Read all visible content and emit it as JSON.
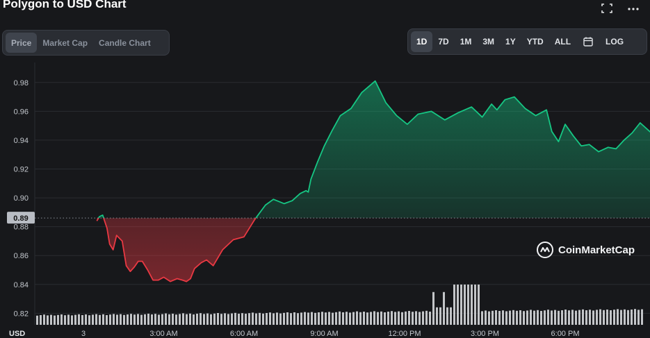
{
  "header": {
    "title": "Polygon to USD Chart"
  },
  "tabs": {
    "items": [
      "Price",
      "Market Cap",
      "Candle Chart"
    ],
    "active": "Price"
  },
  "ranges": {
    "items": [
      "1D",
      "7D",
      "1M",
      "3M",
      "1Y",
      "YTD",
      "ALL"
    ],
    "active": "1D",
    "log_label": "LOG"
  },
  "watermark": {
    "text": "CoinMarketCap"
  },
  "colors": {
    "up": "#16c784",
    "down": "#ea3943",
    "grid": "#2a2c31",
    "background": "#17181b"
  },
  "chart_data": {
    "type": "line",
    "title": "Polygon to USD Chart",
    "xlabel": "",
    "ylabel": "USD",
    "ylim": [
      0.812,
      0.99
    ],
    "yticks": [
      0.82,
      0.84,
      0.86,
      0.88,
      0.9,
      0.92,
      0.94,
      0.96,
      0.98
    ],
    "xlim": [
      0.5,
      24.2
    ],
    "x_ticks": [
      {
        "x": 0,
        "label": "3"
      },
      {
        "x": 3,
        "label": "3:00 AM"
      },
      {
        "x": 6,
        "label": "6:00 AM"
      },
      {
        "x": 9,
        "label": "9:00 AM"
      },
      {
        "x": 12,
        "label": "12:00 PM"
      },
      {
        "x": 15,
        "label": "3:00 PM"
      },
      {
        "x": 18,
        "label": "6:00 PM"
      }
    ],
    "x_unit": "hours since 12:00 AM",
    "reference_price": 0.886,
    "reference_label": "0.89",
    "series": [
      {
        "x": [
          0.5,
          0.6,
          0.72,
          0.88,
          0.98,
          1.11,
          1.24,
          1.45,
          1.6,
          1.75,
          1.9,
          2.05,
          2.2,
          2.4,
          2.6,
          2.8,
          3.0,
          3.25,
          3.5,
          3.7,
          3.85,
          4.0,
          4.15,
          4.4,
          4.6,
          4.85,
          5.2,
          5.6,
          6.0,
          6.4,
          6.8,
          7.1,
          7.5,
          7.8,
          8.1,
          8.32,
          8.4,
          8.5,
          8.75,
          9.0,
          9.3,
          9.6,
          10.0,
          10.4,
          10.9,
          11.3,
          11.7,
          12.1,
          12.5,
          13.0,
          13.5,
          14.0,
          14.5,
          14.9,
          15.25,
          15.45,
          15.75,
          16.1,
          16.5,
          16.9,
          17.3,
          17.5,
          17.75,
          18.0,
          18.3,
          18.6,
          18.9,
          19.25,
          19.6,
          19.9,
          20.2,
          20.5,
          20.8,
          21.1,
          21.45,
          21.7,
          22.0,
          22.2,
          22.5,
          22.85,
          23.1,
          23.5,
          23.8,
          24.0,
          24.2
        ],
        "y": [
          0.884,
          0.887,
          0.888,
          0.879,
          0.868,
          0.864,
          0.874,
          0.87,
          0.853,
          0.849,
          0.852,
          0.856,
          0.856,
          0.85,
          0.843,
          0.843,
          0.845,
          0.842,
          0.844,
          0.843,
          0.842,
          0.844,
          0.851,
          0.855,
          0.857,
          0.853,
          0.864,
          0.871,
          0.873,
          0.885,
          0.895,
          0.899,
          0.896,
          0.898,
          0.903,
          0.905,
          0.904,
          0.913,
          0.925,
          0.936,
          0.947,
          0.957,
          0.962,
          0.973,
          0.981,
          0.966,
          0.957,
          0.951,
          0.958,
          0.96,
          0.954,
          0.959,
          0.963,
          0.956,
          0.965,
          0.961,
          0.968,
          0.97,
          0.962,
          0.957,
          0.961,
          0.946,
          0.939,
          0.951,
          0.943,
          0.936,
          0.937,
          0.932,
          0.935,
          0.934,
          0.94,
          0.945,
          0.952,
          0.947,
          0.941,
          0.947,
          0.955,
          0.95,
          0.952,
          0.953,
          0.952,
          0.945,
          0.958,
          0.954,
          0.956
        ]
      }
    ],
    "volume_approx": [
      0.3,
      0.35,
      0.4,
      0.45,
      0.5,
      0.55,
      0.6,
      0.65,
      0.7,
      0.75,
      0.8,
      0.85,
      0.9,
      1.0,
      1.05,
      1.1,
      1.2,
      1.3,
      1.35,
      1.4,
      1.45,
      1.5,
      1.55,
      1.6,
      1.65,
      1.7,
      1.75,
      1.8,
      1.85,
      1.9,
      1.95,
      2.0,
      2.05,
      2.1,
      2.15,
      2.2,
      2.25,
      2.3
    ]
  }
}
